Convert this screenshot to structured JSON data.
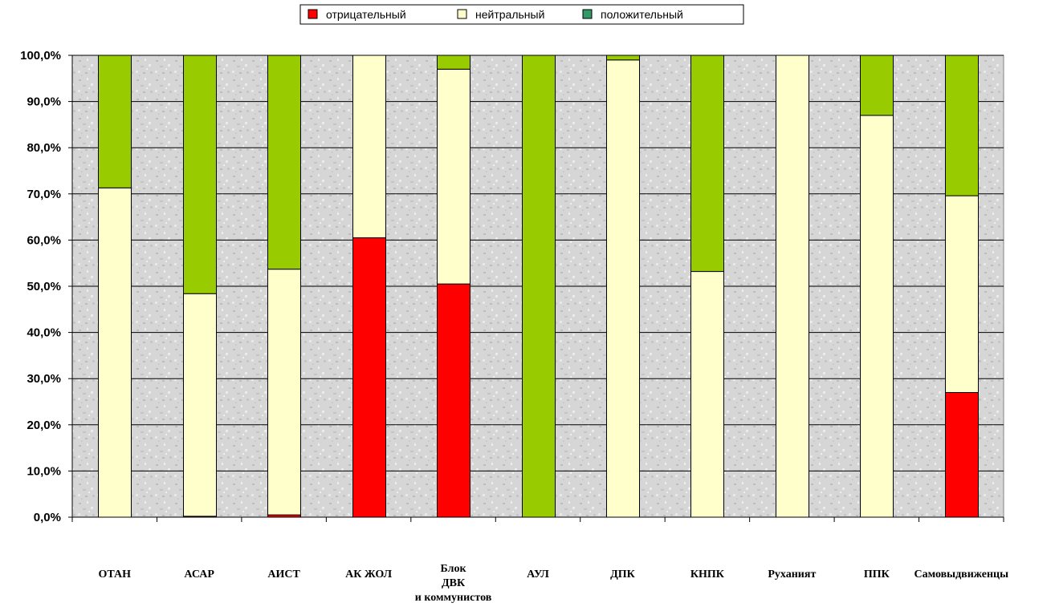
{
  "chart_data": {
    "type": "bar",
    "stacked": true,
    "normalized": true,
    "categories": [
      [
        "ОТАН"
      ],
      [
        "АСАР"
      ],
      [
        "АИСТ"
      ],
      [
        "АК ЖОЛ"
      ],
      [
        "Блок",
        "ДВК",
        "и коммунистов"
      ],
      [
        "АУЛ"
      ],
      [
        "ДПК"
      ],
      [
        "КНПК"
      ],
      [
        "Руханият"
      ],
      [
        "ППК"
      ],
      [
        "Самовыдвиженцы"
      ]
    ],
    "series": [
      {
        "name": "отрицательный",
        "color": "#ff0000",
        "values": [
          0.0,
          0.2,
          0.5,
          60.5,
          50.5,
          0.0,
          0.0,
          0.0,
          0.0,
          0.0,
          27.0
        ]
      },
      {
        "name": "нейтральный",
        "color": "#ffffcc",
        "values": [
          71.3,
          48.2,
          53.2,
          39.5,
          46.5,
          0.0,
          99.0,
          53.2,
          100.0,
          87.0,
          42.6
        ]
      },
      {
        "name": "положительный",
        "color": "#99cc00",
        "legend_color": "#339966",
        "values": [
          28.7,
          51.6,
          46.3,
          0.0,
          3.0,
          100.0,
          1.0,
          46.8,
          0.0,
          13.0,
          30.4
        ]
      }
    ],
    "yticks": [
      "0,0%",
      "10,0%",
      "20,0%",
      "30,0%",
      "40,0%",
      "50,0%",
      "60,0%",
      "70,0%",
      "80,0%",
      "90,0%",
      "100,0%"
    ],
    "ylim": [
      0,
      100
    ],
    "grid": true,
    "legend_position": "top-center",
    "plot_background": "#d4d4d4"
  }
}
